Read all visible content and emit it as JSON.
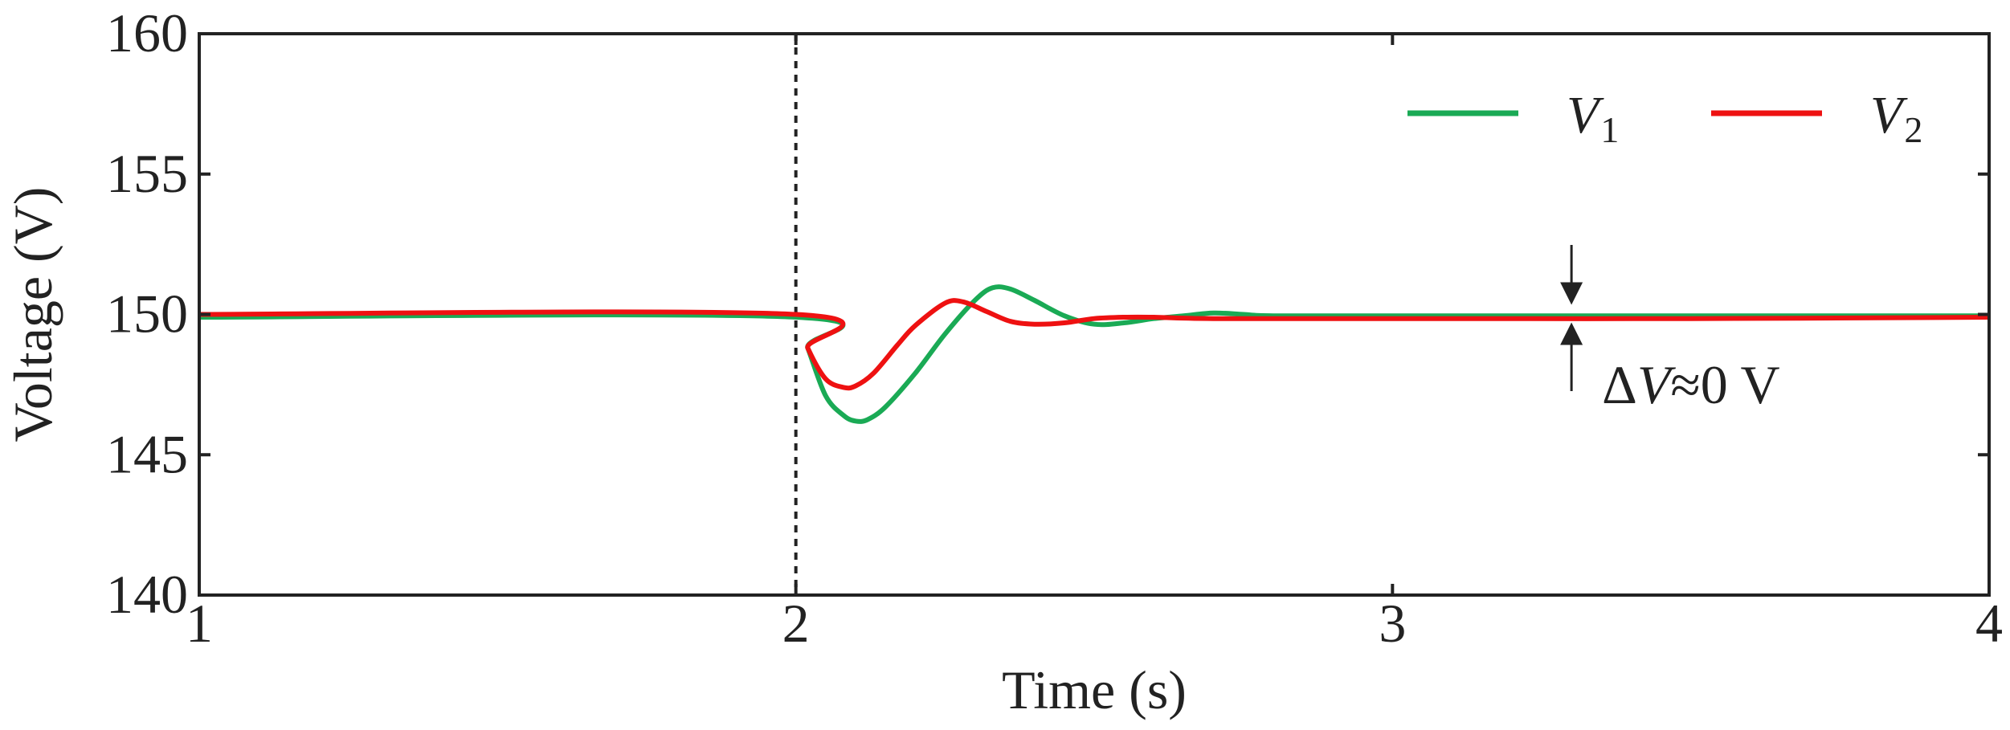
{
  "chart_data": {
    "type": "line",
    "title": "",
    "xlabel": "Time (s)",
    "ylabel": "Voltage (V)",
    "xlim": [
      1,
      4
    ],
    "ylim": [
      140,
      160
    ],
    "xticks": [
      1,
      2,
      3,
      4
    ],
    "yticks": [
      140,
      145,
      150,
      155,
      160
    ],
    "xtick_labels": [
      "1",
      "2",
      "3",
      "4"
    ],
    "ytick_labels": [
      "140",
      "145",
      "150",
      "155",
      "160"
    ],
    "grid": false,
    "legend_position": "top-right",
    "event_marker_x": 2,
    "series": [
      {
        "name": "V1",
        "legend_main": "V",
        "legend_sub": "1",
        "color": "#1aaa55",
        "x": [
          1.0,
          2.0,
          2.02,
          2.05,
          2.08,
          2.1,
          2.12,
          2.15,
          2.2,
          2.25,
          2.3,
          2.33,
          2.36,
          2.4,
          2.45,
          2.5,
          2.55,
          2.6,
          2.65,
          2.7,
          2.75,
          2.8,
          3.0,
          3.5,
          4.0
        ],
        "values": [
          149.9,
          149.9,
          148.8,
          147.1,
          146.4,
          146.2,
          146.25,
          146.7,
          147.9,
          149.3,
          150.5,
          150.95,
          150.9,
          150.5,
          149.95,
          149.65,
          149.7,
          149.85,
          149.95,
          150.05,
          150.0,
          149.95,
          149.95,
          149.95,
          149.95
        ]
      },
      {
        "name": "V2",
        "legend_main": "V",
        "legend_sub": "2",
        "color": "#ee1111",
        "x": [
          1.0,
          2.0,
          2.02,
          2.05,
          2.08,
          2.1,
          2.13,
          2.17,
          2.2,
          2.25,
          2.28,
          2.32,
          2.36,
          2.4,
          2.45,
          2.5,
          2.55,
          2.6,
          2.7,
          3.0,
          3.5,
          4.0
        ],
        "values": [
          150.0,
          150.0,
          148.8,
          147.7,
          147.4,
          147.45,
          147.9,
          148.9,
          149.6,
          150.4,
          150.45,
          150.1,
          149.75,
          149.65,
          149.7,
          149.85,
          149.9,
          149.9,
          149.85,
          149.85,
          149.85,
          149.9
        ]
      }
    ],
    "annotation": {
      "text": "ΔV≈0 V",
      "delta": "Δ",
      "var": "V",
      "rest": "≈0 V",
      "x": 3.3
    }
  }
}
